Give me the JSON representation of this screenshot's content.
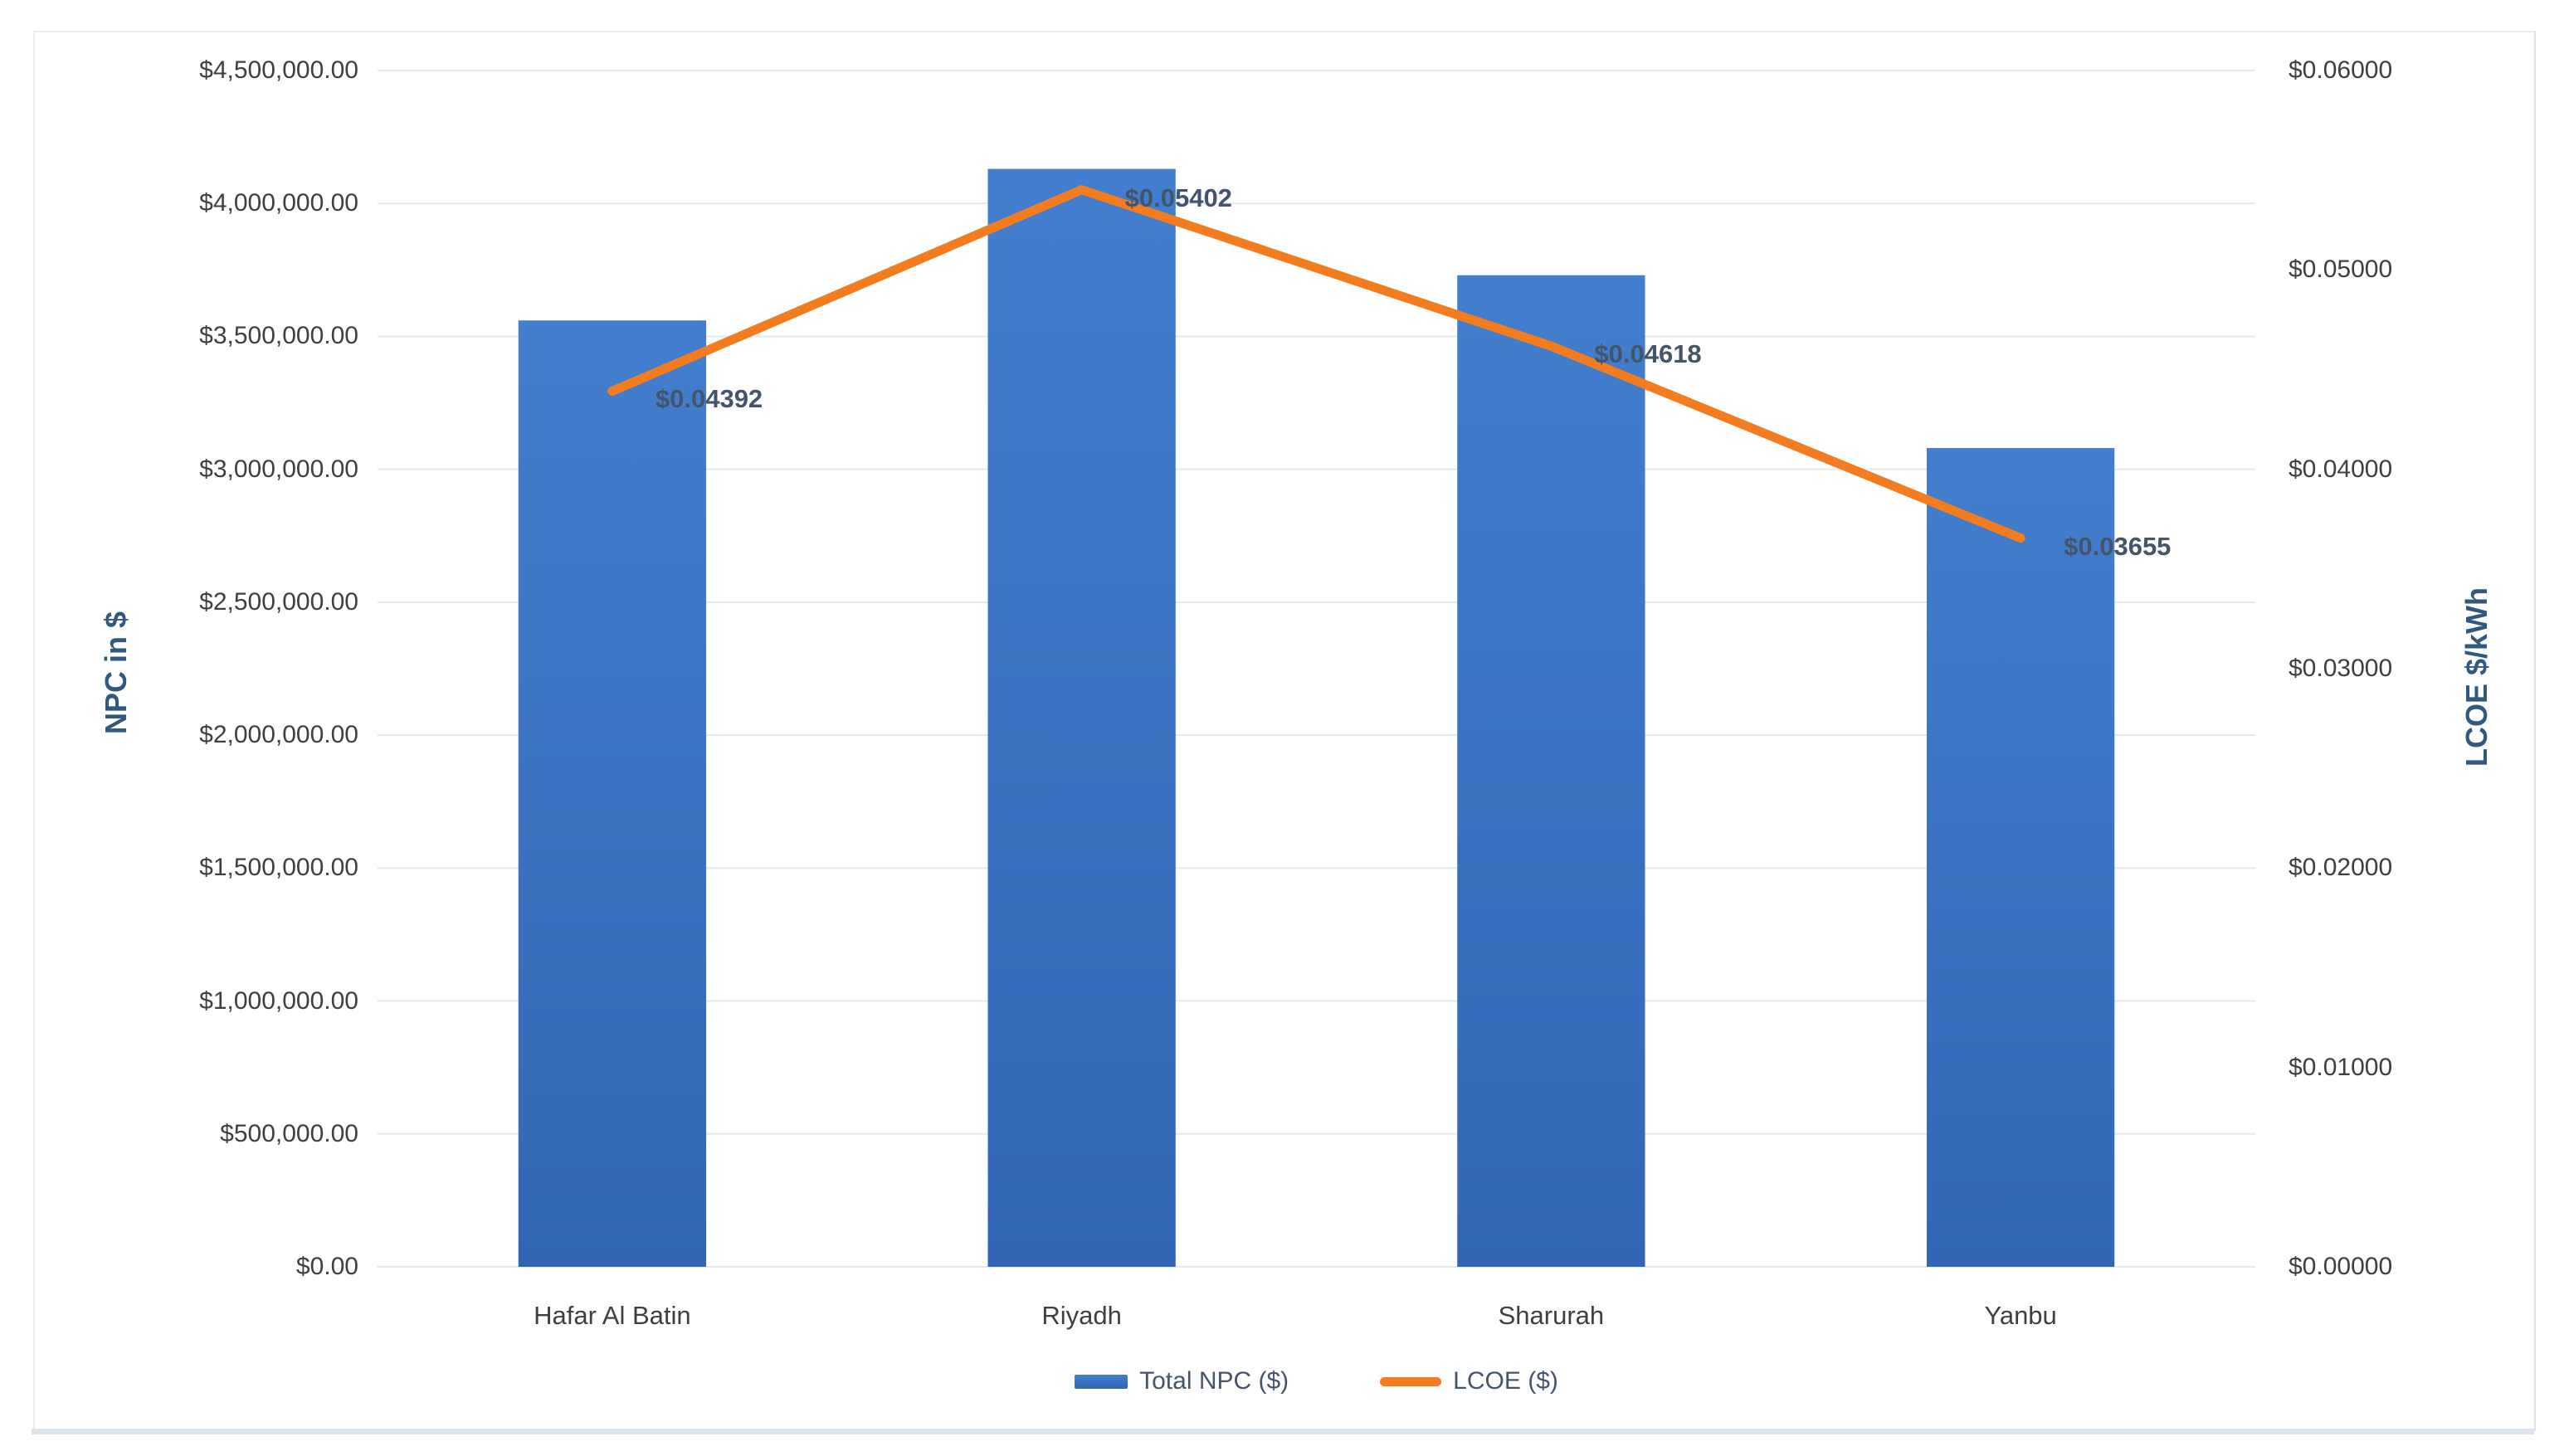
{
  "figure": {
    "left_axis_title": "NPC in $",
    "right_axis_title": "LCOE $/kWh",
    "colors": {
      "bar_top": "#437FCE",
      "bar_bottom": "#3266B4",
      "line": "#F47C20",
      "data_label": "#44546A",
      "axis_title": "#31597F",
      "tick_text": "#3f3f3f",
      "gridline": "#E4EAF1"
    }
  },
  "chart_data": {
    "type": "bar+line combo",
    "categories": [
      "Hafar Al Batin",
      "Riyadh",
      "Sharurah",
      "Yanbu"
    ],
    "series": [
      {
        "name": "Total NPC ($)",
        "type": "bar",
        "axis": "left",
        "values": [
          3560000,
          4130000,
          3730000,
          3080000
        ]
      },
      {
        "name": "LCOE ($)",
        "type": "line",
        "axis": "right",
        "values": [
          0.04392,
          0.05402,
          0.04618,
          0.03655
        ],
        "data_labels": [
          "$0.04392",
          "$0.05402",
          "$0.04618",
          "$0.03655"
        ]
      }
    ],
    "left_axis": {
      "label": "NPC in $",
      "min": 0,
      "max": 4500000,
      "step": 500000,
      "tick_labels": [
        "$0.00",
        "$500,000.00",
        "$1,000,000.00",
        "$1,500,000.00",
        "$2,000,000.00",
        "$2,500,000.00",
        "$3,000,000.00",
        "$3,500,000.00",
        "$4,000,000.00",
        "$4,500,000.00"
      ]
    },
    "right_axis": {
      "label": "LCOE $/kWh",
      "min": 0,
      "max": 0.06,
      "step": 0.01,
      "tick_labels": [
        "$0.00000",
        "$0.01000",
        "$0.02000",
        "$0.03000",
        "$0.04000",
        "$0.05000",
        "$0.06000"
      ]
    },
    "grid": true,
    "legend_position": "bottom"
  }
}
